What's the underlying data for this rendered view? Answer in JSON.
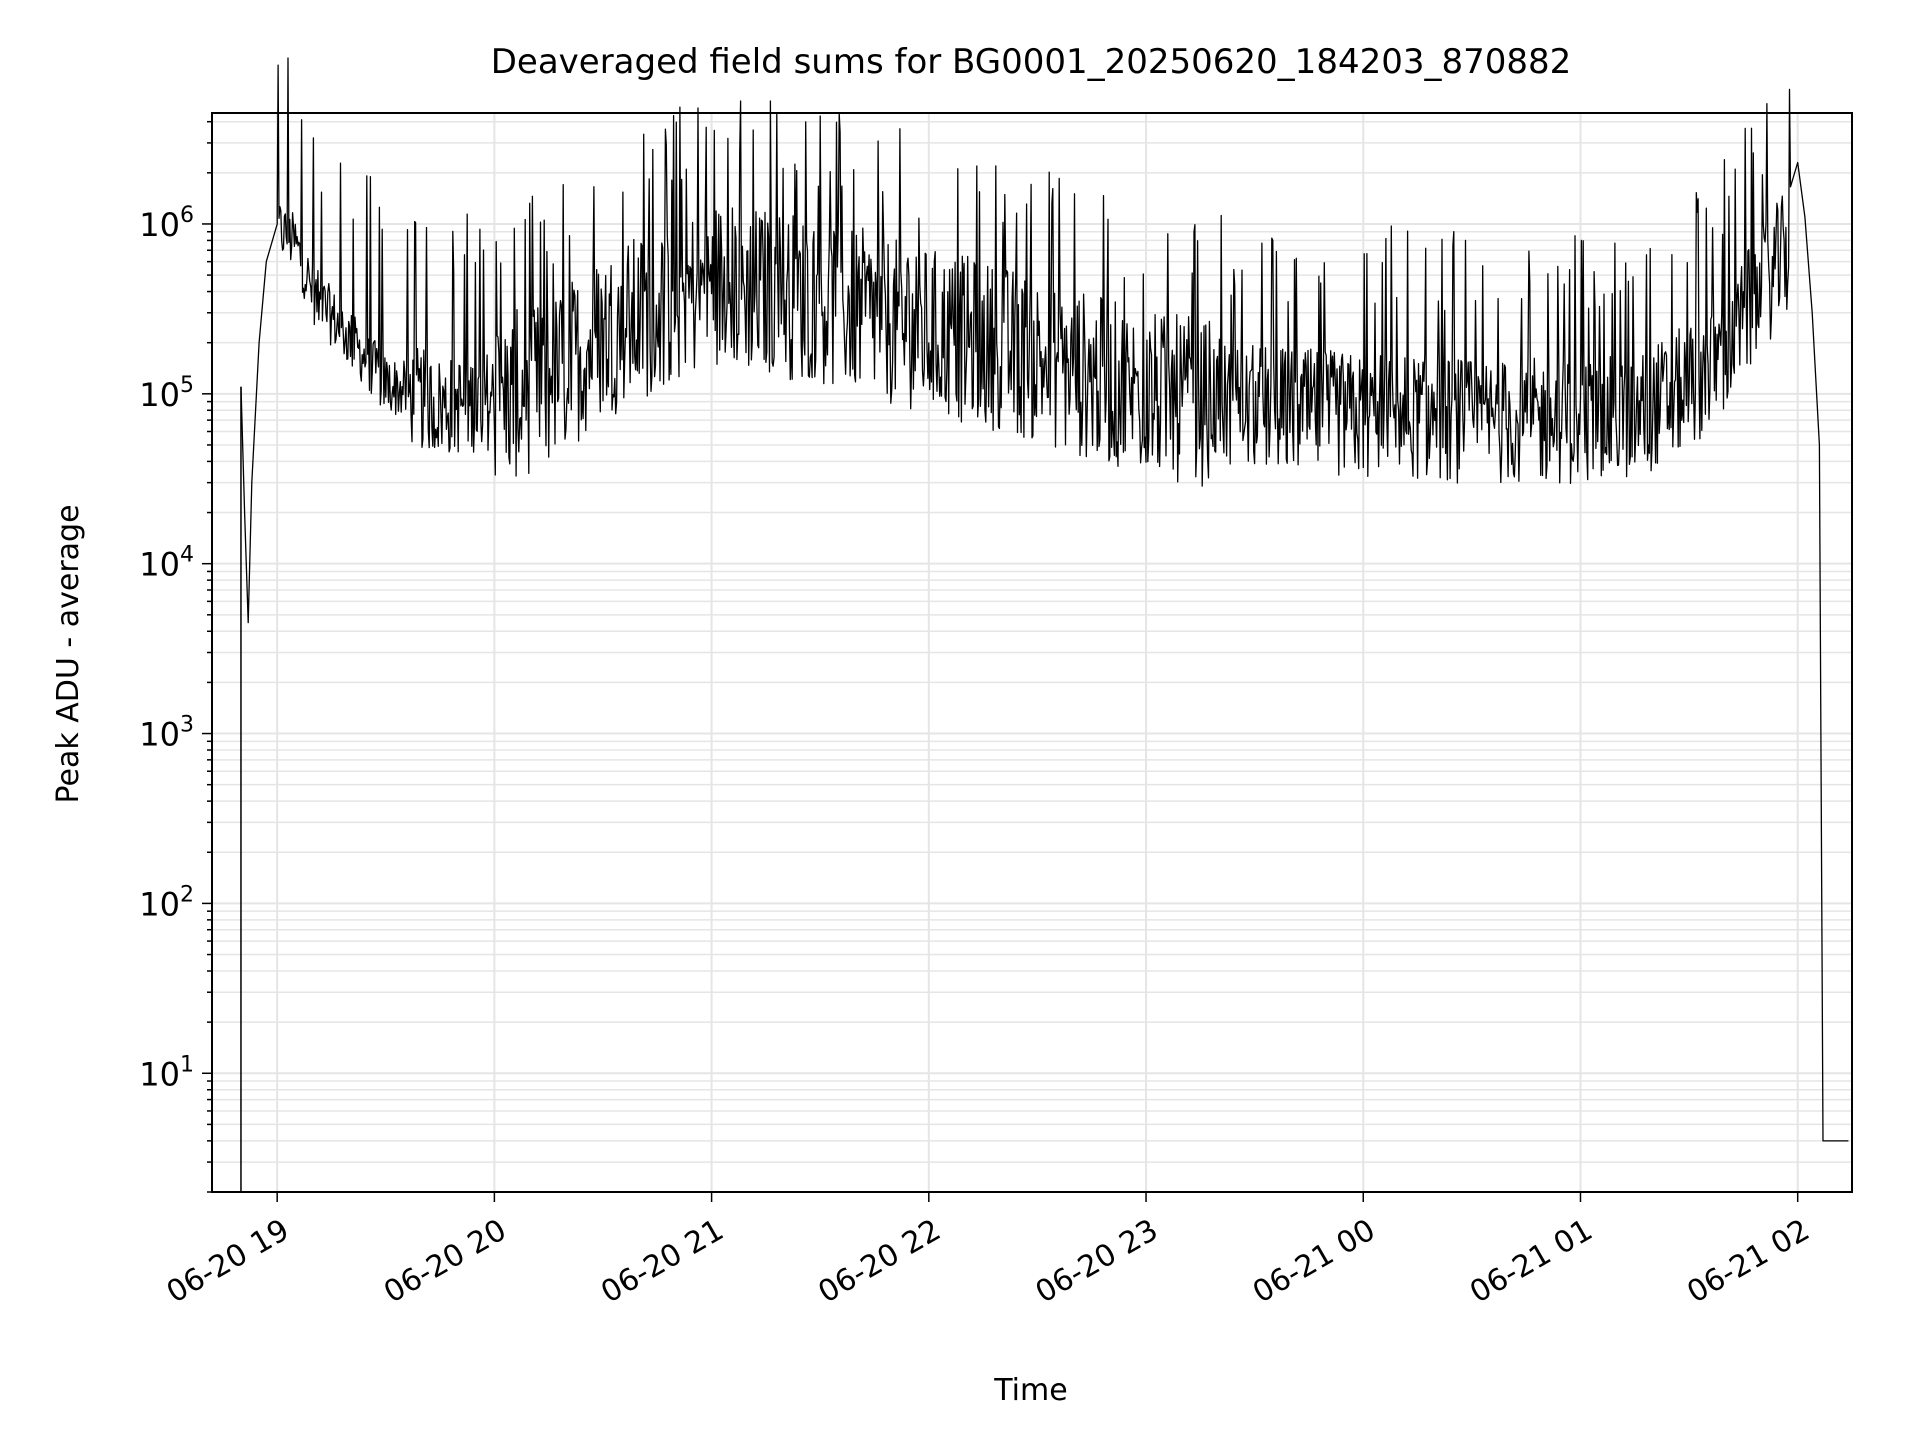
{
  "chart_data": {
    "type": "line",
    "title": "Deaveraged field sums for BG0001_20250620_184203_870882",
    "xlabel": "Time",
    "ylabel": "Peak ADU - average",
    "x_scale": "time",
    "y_scale": "log",
    "xlim": [
      "2025-06-20 18:42",
      "2025-06-21 02:15"
    ],
    "ylim": [
      2,
      4500000.0
    ],
    "x_ticks": [
      "06-20 19",
      "06-20 20",
      "06-20 21",
      "06-20 22",
      "06-20 23",
      "06-21 00",
      "06-21 01",
      "06-21 02"
    ],
    "y_ticks": [
      {
        "base": "10",
        "exp": "1",
        "value": 10
      },
      {
        "base": "10",
        "exp": "2",
        "value": 100
      },
      {
        "base": "10",
        "exp": "3",
        "value": 1000
      },
      {
        "base": "10",
        "exp": "4",
        "value": 10000
      },
      {
        "base": "10",
        "exp": "5",
        "value": 100000
      },
      {
        "base": "10",
        "exp": "6",
        "value": 1000000
      }
    ],
    "grid": true,
    "legend": "none",
    "line_color": "#000000",
    "grid_color": "#e5e5e5",
    "series": [
      {
        "points": [
          [
            "2025-06-20 18:50",
            110000.0
          ],
          [
            "2025-06-20 18:51",
            20000.0
          ],
          [
            "2025-06-20 18:52",
            4500.0
          ],
          [
            "2025-06-20 18:53",
            30000.0
          ],
          [
            "2025-06-20 18:55",
            200000.0
          ],
          [
            "2025-06-20 18:57",
            600000.0
          ],
          [
            "2025-06-20 19:00",
            1000000.0
          ],
          [
            "2025-06-20 19:05",
            800000.0
          ],
          [
            "2025-06-20 19:10",
            400000.0
          ],
          [
            "2025-06-20 19:20",
            220000.0
          ],
          [
            "2025-06-20 19:30",
            120000.0
          ],
          [
            "2025-06-20 19:45",
            90000.0
          ],
          [
            "2025-06-20 20:00",
            100000.0
          ],
          [
            "2025-06-20 20:15",
            130000.0
          ],
          [
            "2025-06-20 20:30",
            250000.0
          ],
          [
            "2025-06-20 20:45",
            350000.0
          ],
          [
            "2025-06-20 21:00",
            500000.0
          ],
          [
            "2025-06-20 21:15",
            450000.0
          ],
          [
            "2025-06-20 21:30",
            400000.0
          ],
          [
            "2025-06-20 21:45",
            320000.0
          ],
          [
            "2025-06-20 22:00",
            260000.0
          ],
          [
            "2025-06-20 22:15",
            220000.0
          ],
          [
            "2025-06-20 22:30",
            180000.0
          ],
          [
            "2025-06-20 22:45",
            140000.0
          ],
          [
            "2025-06-20 23:00",
            110000.0
          ],
          [
            "2025-06-20 23:15",
            100000.0
          ],
          [
            "2025-06-20 23:30",
            90000.0
          ],
          [
            "2025-06-20 23:45",
            85000.0
          ],
          [
            "2025-06-21 00:00",
            80000.0
          ],
          [
            "2025-06-21 00:15",
            80000.0
          ],
          [
            "2025-06-21 00:30",
            75000.0
          ],
          [
            "2025-06-21 00:45",
            75000.0
          ],
          [
            "2025-06-21 01:00",
            75000.0
          ],
          [
            "2025-06-21 01:15",
            80000.0
          ],
          [
            "2025-06-21 01:30",
            120000.0
          ],
          [
            "2025-06-21 01:40",
            200000.0
          ],
          [
            "2025-06-21 01:50",
            450000.0
          ],
          [
            "2025-06-21 01:58",
            800000.0
          ],
          [
            "2025-06-21 02:00",
            2300000.0
          ],
          [
            "2025-06-21 02:02",
            1100000.0
          ],
          [
            "2025-06-21 02:04",
            300000.0
          ],
          [
            "2025-06-21 02:06",
            50000.0
          ],
          [
            "2025-06-21 02:07",
            4
          ],
          [
            "2025-06-21 02:14",
            4
          ]
        ]
      }
    ]
  }
}
